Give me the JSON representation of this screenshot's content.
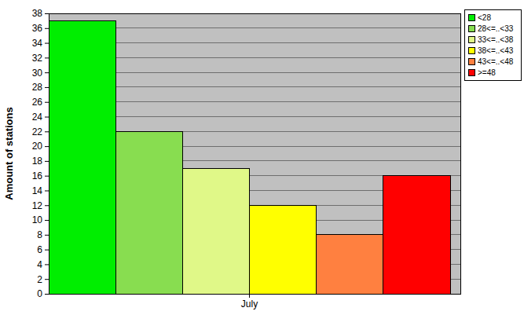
{
  "chart_data": {
    "type": "bar",
    "ylabel": "Amount of stations",
    "categories": [
      "July"
    ],
    "series": [
      {
        "name": "<28",
        "color": "#00ee00",
        "values": [
          37
        ]
      },
      {
        "name": "28<=..<33",
        "color": "#88dd50",
        "values": [
          22
        ]
      },
      {
        "name": "33<=..<38",
        "color": "#e0f888",
        "values": [
          17
        ]
      },
      {
        "name": "38<=..<43",
        "color": "#ffff00",
        "values": [
          12
        ]
      },
      {
        "name": "43<=..<48",
        "color": "#ff8040",
        "values": [
          8
        ]
      },
      {
        "name": ">=48",
        "color": "#ff0000",
        "values": [
          16
        ]
      }
    ],
    "ylim": [
      0,
      38
    ],
    "yticks": [
      0,
      2,
      4,
      6,
      8,
      10,
      12,
      14,
      16,
      18,
      20,
      22,
      24,
      26,
      28,
      30,
      32,
      34,
      36,
      38
    ],
    "grid": true,
    "legend": "top-right"
  }
}
